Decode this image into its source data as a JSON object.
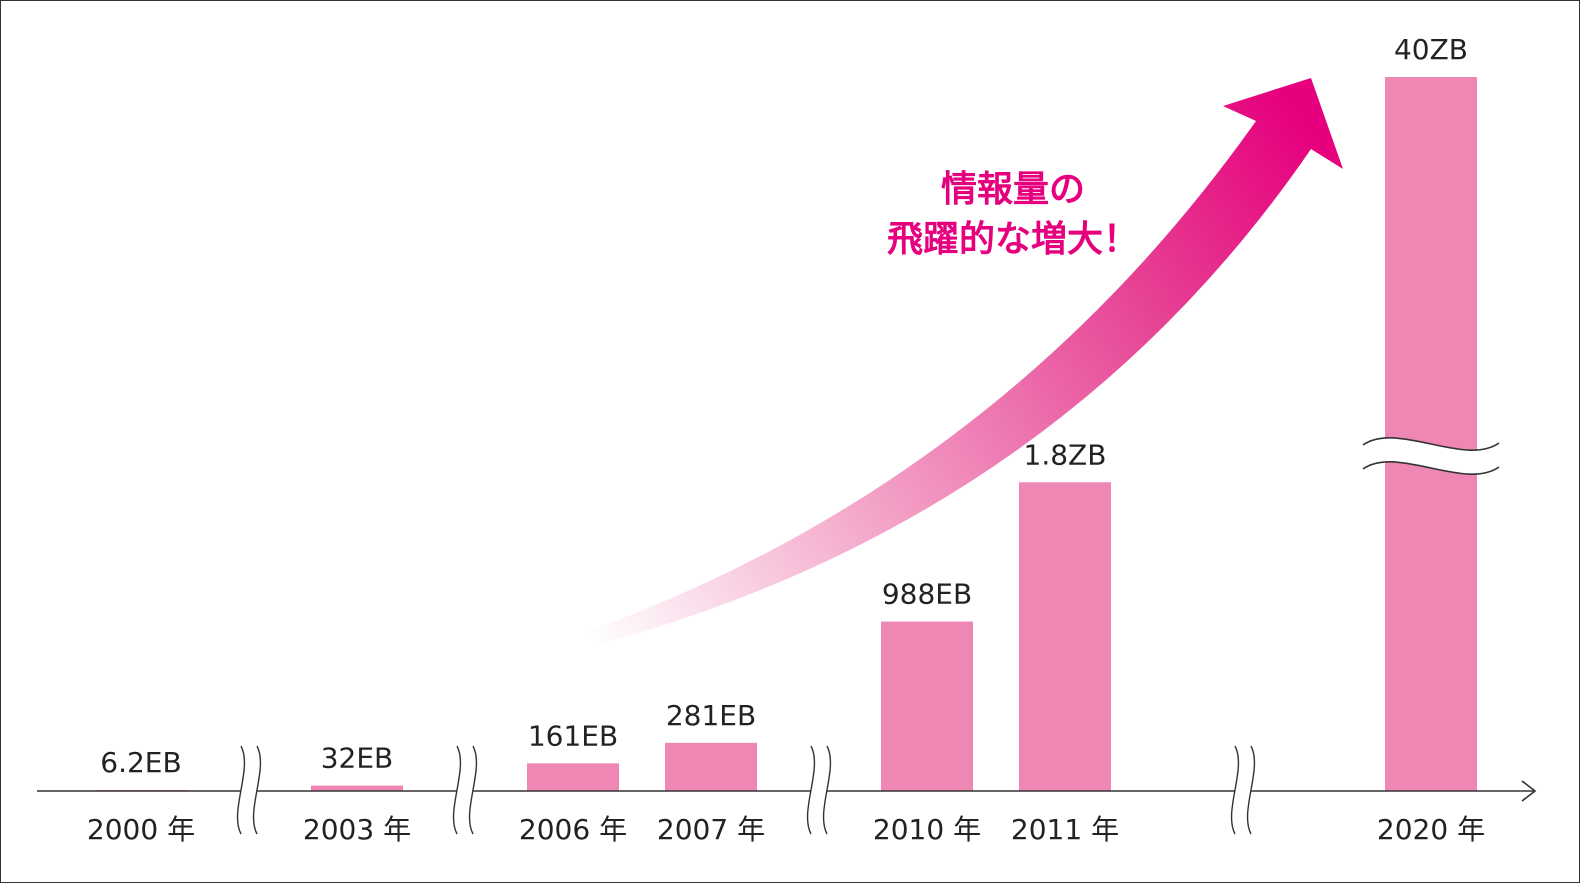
{
  "chart_data": {
    "type": "bar",
    "categories": [
      "2000 年",
      "2003 年",
      "2006 年",
      "2007 年",
      "2010 年",
      "2011 年",
      "2020 年"
    ],
    "values_label": [
      "6.2EB",
      "32EB",
      "161EB",
      "281EB",
      "988EB",
      "1.8ZB",
      "40ZB"
    ],
    "values_eb": [
      6.2,
      32,
      161,
      281,
      988,
      1800,
      40000
    ],
    "xlabel": "",
    "ylabel": "",
    "axis_breaks_after_index": [
      0,
      1,
      3,
      5
    ],
    "value_break_on_index": 6,
    "annotation": {
      "line1": "情報量の",
      "line2": "飛躍的な増大！"
    },
    "colors": {
      "bar": "#ef87b5",
      "accent": "#e6007e",
      "axis": "#333333",
      "text": "#222222"
    }
  }
}
